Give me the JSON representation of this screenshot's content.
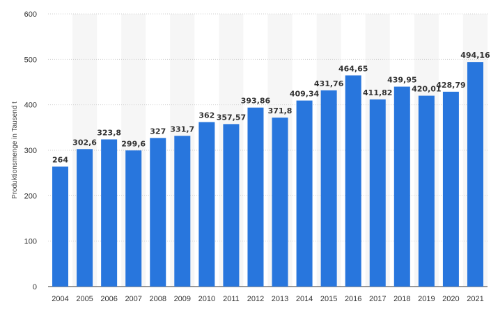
{
  "chart_data": {
    "type": "bar",
    "title": "",
    "xlabel": "",
    "ylabel": "Produktionsmenge in Tausend t",
    "categories": [
      "2004",
      "2005",
      "2006",
      "2007",
      "2008",
      "2009",
      "2010",
      "2011",
      "2012",
      "2013",
      "2014",
      "2015",
      "2016",
      "2017",
      "2018",
      "2019",
      "2020",
      "2021"
    ],
    "values": [
      264,
      302.6,
      323.8,
      299.6,
      327,
      331.7,
      362,
      357.57,
      393.86,
      371.8,
      409.34,
      431.76,
      464.65,
      411.82,
      439.95,
      420.01,
      428.79,
      494.16
    ],
    "data_labels": [
      "264",
      "302,6",
      "323,8",
      "299,6",
      "327",
      "331,7",
      "362",
      "357,57",
      "393,86",
      "371,8",
      "409,34",
      "431,76",
      "464,65",
      "411,82",
      "439,95",
      "420,01",
      "428,79",
      "494,16"
    ],
    "ylim": [
      0,
      600
    ],
    "yticks": [
      "0",
      "100",
      "200",
      "300",
      "400",
      "500",
      "600"
    ],
    "grid": true,
    "legend": "none",
    "colors": {
      "bar": "#2876dd",
      "alt_band": "#f6f6f6",
      "grid": "#cfcfcf",
      "text": "#333333"
    }
  }
}
